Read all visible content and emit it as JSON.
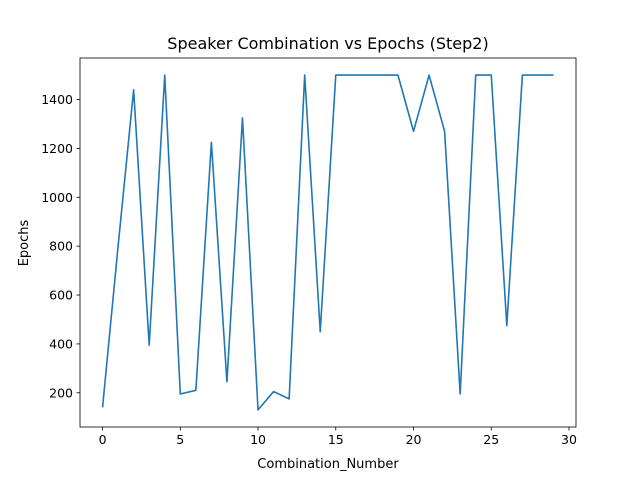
{
  "chart_data": {
    "type": "line",
    "title": "Speaker Combination vs Epochs (Step2)",
    "xlabel": "Combination_Number",
    "ylabel": "Epochs",
    "xlim": [
      -1.45,
      30.45
    ],
    "ylim": [
      60,
      1570
    ],
    "xticks": [
      0,
      5,
      10,
      15,
      20,
      25,
      30
    ],
    "yticks": [
      200,
      400,
      600,
      800,
      1000,
      1200,
      1400
    ],
    "grid": false,
    "line_color": "#1f77b4",
    "series": [
      {
        "x": [
          0,
          1,
          2,
          3,
          4,
          5,
          6,
          7,
          8,
          9,
          10,
          11,
          12,
          13,
          14,
          15,
          16,
          17,
          18,
          19,
          20,
          21,
          22,
          23,
          24,
          25,
          26,
          27,
          28,
          29
        ],
        "values": [
          140,
          800,
          1440,
          395,
          1500,
          195,
          210,
          1225,
          245,
          1325,
          130,
          205,
          175,
          1500,
          450,
          1500,
          1500,
          1500,
          1500,
          1500,
          1270,
          1500,
          1270,
          195,
          1500,
          1500,
          475,
          1500,
          1500,
          1500
        ]
      }
    ]
  }
}
